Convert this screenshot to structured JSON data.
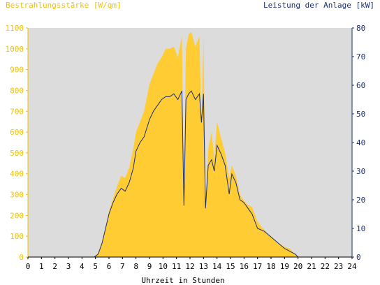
{
  "chart_data": {
    "type": "area",
    "title_left": "Bestrahlungsstärke [W/qm]",
    "title_right": "Leistung der Anlage [kW]",
    "xlabel": "Uhrzeit in Stunden",
    "xlim": [
      0,
      24
    ],
    "y_left_lim": [
      0,
      1100
    ],
    "y_right_lim": [
      0,
      80
    ],
    "x_ticks": [
      "0",
      "1",
      "2",
      "3",
      "4",
      "5",
      "6",
      "7",
      "8",
      "9",
      "10",
      "11",
      "12",
      "13",
      "14",
      "15",
      "16",
      "17",
      "18",
      "19",
      "20",
      "21",
      "22",
      "23",
      "24"
    ],
    "y_left_ticks": [
      "0",
      "100",
      "200",
      "300",
      "400",
      "500",
      "600",
      "700",
      "800",
      "900",
      "1000",
      "1100"
    ],
    "y_right_ticks": [
      "0",
      "10",
      "20",
      "30",
      "40",
      "50",
      "60",
      "70",
      "80"
    ],
    "colors": {
      "irradiance": "#ffcc33",
      "power": "#1a2f7a",
      "plot_bg": "#dcdcdc",
      "left_axis_text": "#f2c200",
      "right_axis_text": "#1a2f7a"
    },
    "series": [
      {
        "name": "Bestrahlungsstärke [W/qm]",
        "axis": "left",
        "points": [
          [
            0,
            0
          ],
          [
            4.9,
            0
          ],
          [
            5.2,
            20
          ],
          [
            5.5,
            80
          ],
          [
            5.8,
            160
          ],
          [
            6.0,
            220
          ],
          [
            6.3,
            280
          ],
          [
            6.6,
            340
          ],
          [
            6.9,
            390
          ],
          [
            7.2,
            380
          ],
          [
            7.5,
            430
          ],
          [
            7.8,
            520
          ],
          [
            8.0,
            600
          ],
          [
            8.3,
            650
          ],
          [
            8.6,
            700
          ],
          [
            9.0,
            830
          ],
          [
            9.3,
            880
          ],
          [
            9.6,
            930
          ],
          [
            9.9,
            960
          ],
          [
            10.2,
            1000
          ],
          [
            10.5,
            1000
          ],
          [
            10.8,
            1010
          ],
          [
            11.1,
            960
          ],
          [
            11.4,
            1060
          ],
          [
            11.55,
            270
          ],
          [
            11.7,
            1000
          ],
          [
            11.9,
            1070
          ],
          [
            12.1,
            1080
          ],
          [
            12.4,
            1010
          ],
          [
            12.7,
            1060
          ],
          [
            12.85,
            630
          ],
          [
            13.0,
            1060
          ],
          [
            13.15,
            270
          ],
          [
            13.35,
            520
          ],
          [
            13.6,
            600
          ],
          [
            13.8,
            470
          ],
          [
            14.0,
            650
          ],
          [
            14.3,
            570
          ],
          [
            14.6,
            500
          ],
          [
            14.9,
            380
          ],
          [
            15.1,
            440
          ],
          [
            15.4,
            390
          ],
          [
            15.7,
            300
          ],
          [
            16.0,
            270
          ],
          [
            16.3,
            250
          ],
          [
            16.6,
            240
          ],
          [
            17.0,
            170
          ],
          [
            17.5,
            130
          ],
          [
            18.0,
            100
          ],
          [
            18.5,
            70
          ],
          [
            19.0,
            50
          ],
          [
            19.4,
            40
          ],
          [
            19.8,
            10
          ],
          [
            20.0,
            0
          ],
          [
            24,
            0
          ]
        ]
      },
      {
        "name": "Leistung der Anlage [kW]",
        "axis": "right",
        "points": [
          [
            0,
            0
          ],
          [
            4.9,
            0
          ],
          [
            5.2,
            1
          ],
          [
            5.5,
            5
          ],
          [
            5.8,
            11
          ],
          [
            6.0,
            15
          ],
          [
            6.3,
            19
          ],
          [
            6.6,
            22
          ],
          [
            6.9,
            24
          ],
          [
            7.2,
            23
          ],
          [
            7.5,
            26
          ],
          [
            7.8,
            31
          ],
          [
            8.0,
            37
          ],
          [
            8.3,
            40
          ],
          [
            8.6,
            42
          ],
          [
            9.0,
            48
          ],
          [
            9.3,
            51
          ],
          [
            9.6,
            53
          ],
          [
            9.9,
            55
          ],
          [
            10.2,
            56
          ],
          [
            10.5,
            56
          ],
          [
            10.8,
            57
          ],
          [
            11.1,
            55
          ],
          [
            11.4,
            58
          ],
          [
            11.55,
            18
          ],
          [
            11.7,
            55
          ],
          [
            11.9,
            57
          ],
          [
            12.1,
            58
          ],
          [
            12.4,
            55
          ],
          [
            12.7,
            57
          ],
          [
            12.85,
            47
          ],
          [
            13.0,
            57
          ],
          [
            13.15,
            17
          ],
          [
            13.35,
            32
          ],
          [
            13.6,
            34
          ],
          [
            13.8,
            30
          ],
          [
            14.0,
            39
          ],
          [
            14.3,
            36
          ],
          [
            14.6,
            32
          ],
          [
            14.9,
            22
          ],
          [
            15.1,
            29
          ],
          [
            15.4,
            26
          ],
          [
            15.7,
            20
          ],
          [
            16.0,
            19
          ],
          [
            16.3,
            17
          ],
          [
            16.6,
            15
          ],
          [
            17.0,
            10
          ],
          [
            17.5,
            9
          ],
          [
            18.0,
            7
          ],
          [
            18.5,
            5
          ],
          [
            19.0,
            3
          ],
          [
            19.4,
            2
          ],
          [
            19.8,
            1
          ],
          [
            20.0,
            0
          ],
          [
            24,
            0
          ]
        ]
      }
    ]
  }
}
